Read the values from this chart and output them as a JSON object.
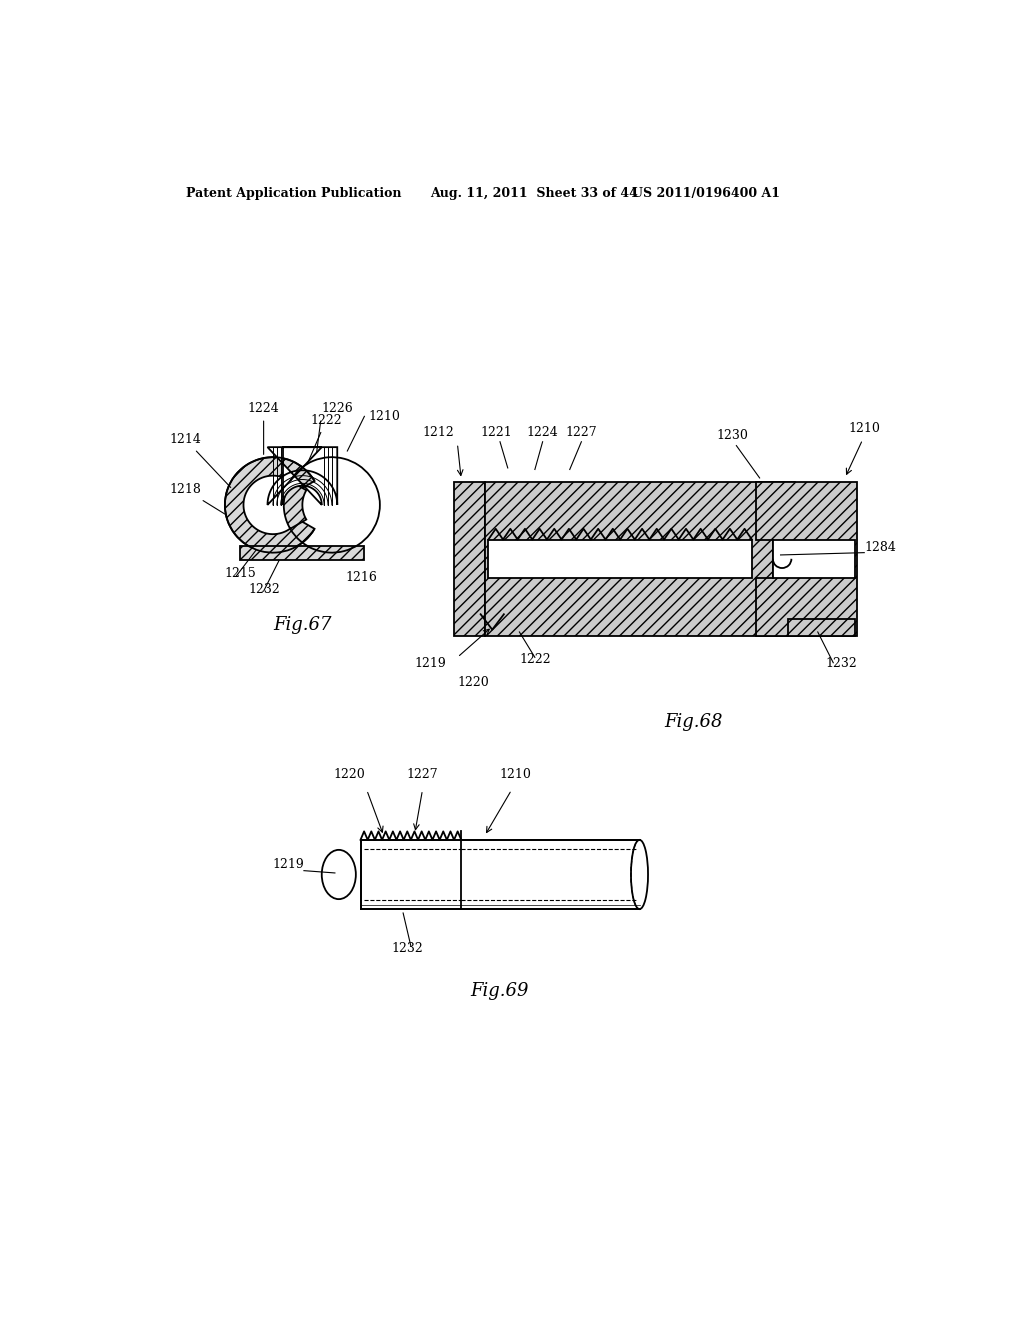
{
  "header_left": "Patent Application Publication",
  "header_mid": "Aug. 11, 2011  Sheet 33 of 44",
  "header_right": "US 2011/0196400 A1",
  "fig67_label": "Fig.67",
  "fig68_label": "Fig.68",
  "fig69_label": "Fig.69",
  "bg": "#ffffff",
  "lc": "#000000"
}
